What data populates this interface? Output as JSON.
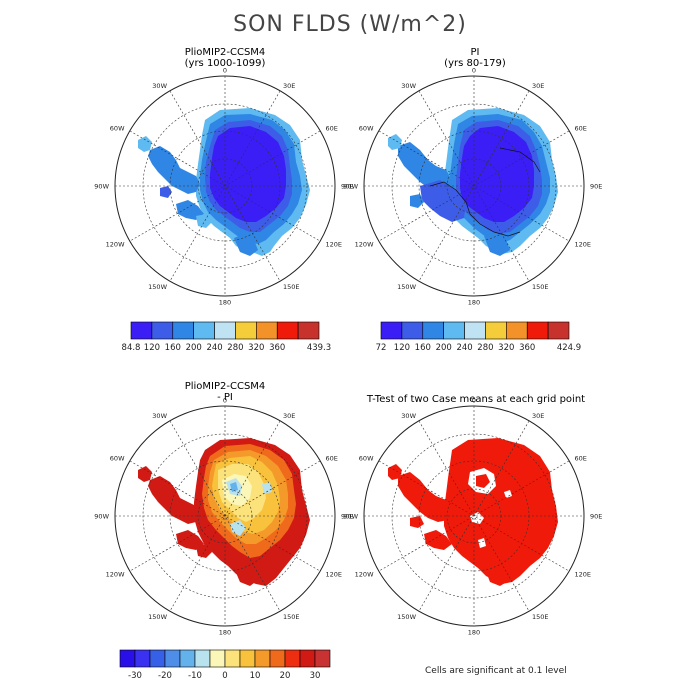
{
  "title": "SON FLDS (W/m^2)",
  "panels": [
    {
      "id": "tl",
      "title": "PlioMIP2-CCSM4",
      "subtitle": "(yrs 1000-1099)"
    },
    {
      "id": "tr",
      "title": "PI",
      "subtitle": "(yrs 80-179)"
    },
    {
      "id": "bl",
      "title": "PlioMIP2-CCSM4",
      "subtitle": "- PI"
    },
    {
      "id": "br",
      "title": "T-Test of two Case means at each grid point",
      "subtitle": ""
    }
  ],
  "longitude_labels": [
    "0",
    "30E",
    "60E",
    "90E",
    "120E",
    "150E",
    "180",
    "150W",
    "120W",
    "90W",
    "60W",
    "30W"
  ],
  "colorbars": {
    "cb1": {
      "colors": [
        "#3a1ef5",
        "#3d5de8",
        "#2f86e4",
        "#5ebaf0",
        "#bfe3f2",
        "#f5cd3a",
        "#f4922a",
        "#f01a0a",
        "#c8322c"
      ],
      "labels": [
        "84.8",
        "120",
        "160",
        "200",
        "240",
        "280",
        "320",
        "360",
        "439.3"
      ]
    },
    "cb2": {
      "colors": [
        "#3a1ef5",
        "#3d5de8",
        "#2f86e4",
        "#5ebaf0",
        "#bfe3f2",
        "#f5cd3a",
        "#f4922a",
        "#f01a0a",
        "#c8322c"
      ],
      "labels": [
        "72",
        "120",
        "160",
        "200",
        "240",
        "280",
        "320",
        "360",
        "424.9"
      ]
    },
    "cb3": {
      "colors": [
        "#2a10e8",
        "#3a32f0",
        "#3760e8",
        "#4f8ee8",
        "#64b2ec",
        "#b8e2ee",
        "#fbf7b8",
        "#fbe27a",
        "#f8c23c",
        "#f49a2a",
        "#f06a1c",
        "#ee2e10",
        "#d21a14",
        "#c83232"
      ],
      "labels": [
        "-30",
        "-20",
        "-10",
        "0",
        "10",
        "20",
        "30"
      ]
    }
  },
  "significance_note": "Cells are significant at 0.1 level",
  "colors": {
    "deep_blue": "#3a1ef5",
    "mid_blue": "#2f86e4",
    "light_blue": "#5ebaf0",
    "red": "#f01a0a",
    "dark_red": "#c8322c",
    "yellow": "#fbe27a",
    "orange": "#f49a2a"
  }
}
